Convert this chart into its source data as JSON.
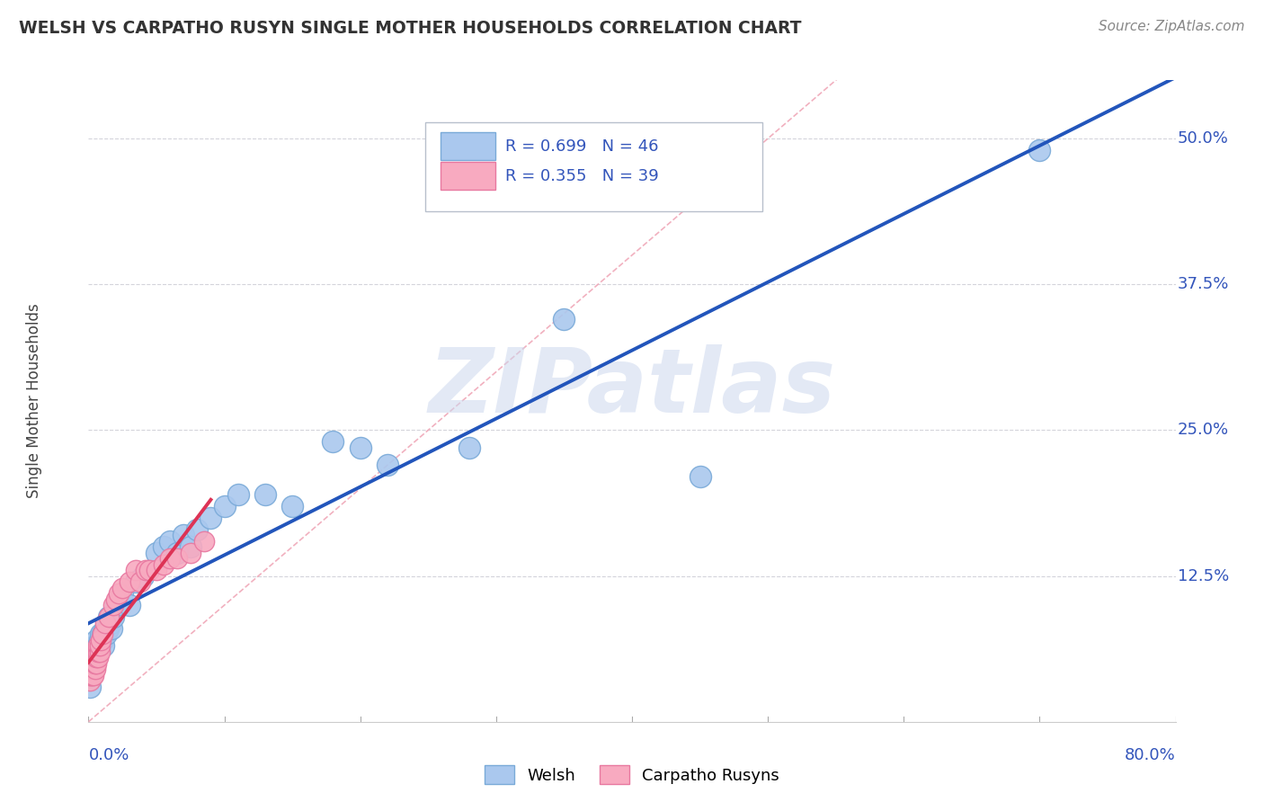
{
  "title": "WELSH VS CARPATHO RUSYN SINGLE MOTHER HOUSEHOLDS CORRELATION CHART",
  "source": "Source: ZipAtlas.com",
  "ylabel": "Single Mother Households",
  "watermark_text": "ZIPatlas",
  "welsh_color": "#aac8ee",
  "welsh_edge": "#7aaad8",
  "carpatho_color": "#f8aac0",
  "carpatho_edge": "#e878a0",
  "welsh_line_color": "#2255bb",
  "carpatho_line_color": "#dd3355",
  "diag_line_color": "#f0a8b8",
  "grid_color": "#d0d0d8",
  "title_color": "#333333",
  "right_label_color": "#3355bb",
  "source_color": "#888888",
  "ytick_labels": [
    "12.5%",
    "25.0%",
    "37.5%",
    "50.0%"
  ],
  "ytick_values": [
    0.125,
    0.25,
    0.375,
    0.5
  ],
  "xlim": [
    0.0,
    0.8
  ],
  "ylim": [
    0.0,
    0.55
  ],
  "welsh_R": 0.699,
  "welsh_N": 46,
  "carpatho_R": 0.355,
  "carpatho_N": 39,
  "welsh_x": [
    0.001,
    0.002,
    0.003,
    0.004,
    0.005,
    0.005,
    0.006,
    0.007,
    0.008,
    0.008,
    0.009,
    0.01,
    0.01,
    0.011,
    0.012,
    0.013,
    0.014,
    0.015,
    0.016,
    0.017,
    0.018,
    0.02,
    0.022,
    0.025,
    0.03,
    0.035,
    0.04,
    0.05,
    0.055,
    0.06,
    0.065,
    0.07,
    0.075,
    0.08,
    0.09,
    0.1,
    0.11,
    0.13,
    0.15,
    0.18,
    0.2,
    0.22,
    0.28,
    0.35,
    0.45,
    0.7
  ],
  "welsh_y": [
    0.03,
    0.05,
    0.06,
    0.055,
    0.06,
    0.065,
    0.07,
    0.065,
    0.07,
    0.065,
    0.075,
    0.07,
    0.075,
    0.065,
    0.08,
    0.075,
    0.08,
    0.09,
    0.085,
    0.08,
    0.09,
    0.1,
    0.105,
    0.11,
    0.1,
    0.12,
    0.125,
    0.145,
    0.15,
    0.155,
    0.145,
    0.16,
    0.15,
    0.165,
    0.175,
    0.185,
    0.195,
    0.195,
    0.185,
    0.24,
    0.235,
    0.22,
    0.235,
    0.345,
    0.21,
    0.49
  ],
  "carpatho_x": [
    0.001,
    0.001,
    0.002,
    0.002,
    0.003,
    0.003,
    0.003,
    0.004,
    0.004,
    0.004,
    0.005,
    0.005,
    0.005,
    0.006,
    0.006,
    0.007,
    0.007,
    0.007,
    0.008,
    0.008,
    0.009,
    0.01,
    0.012,
    0.015,
    0.018,
    0.02,
    0.022,
    0.025,
    0.03,
    0.035,
    0.038,
    0.042,
    0.045,
    0.05,
    0.055,
    0.06,
    0.065,
    0.075,
    0.085
  ],
  "carpatho_y": [
    0.035,
    0.04,
    0.04,
    0.045,
    0.04,
    0.045,
    0.05,
    0.04,
    0.05,
    0.055,
    0.045,
    0.05,
    0.06,
    0.05,
    0.055,
    0.055,
    0.06,
    0.065,
    0.06,
    0.065,
    0.07,
    0.075,
    0.085,
    0.09,
    0.1,
    0.105,
    0.11,
    0.115,
    0.12,
    0.13,
    0.12,
    0.13,
    0.13,
    0.13,
    0.135,
    0.14,
    0.14,
    0.145,
    0.155
  ]
}
